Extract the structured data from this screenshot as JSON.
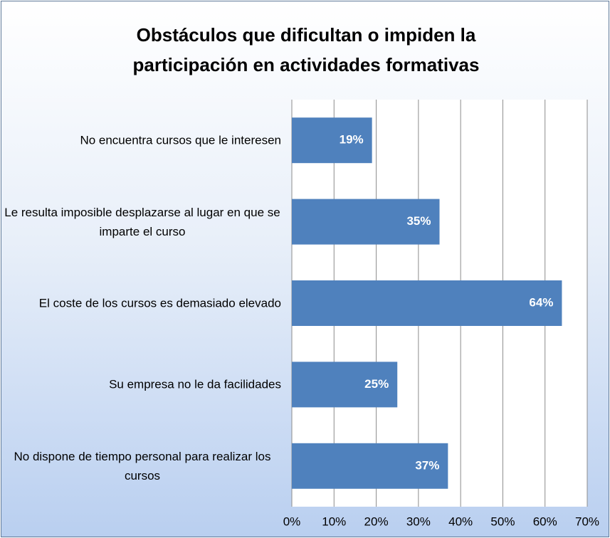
{
  "chart_data": {
    "type": "barh",
    "title": "Obstáculos que dificultan o impiden la participación en actividades formativas",
    "categories": [
      "No encuentra cursos que le interesen",
      "Le resulta imposible desplazarse al lugar en que se imparte el curso",
      "El coste de los cursos es demasiado elevado",
      "Su empresa no le da facilidades",
      "No dispone de tiempo personal para realizar los cursos"
    ],
    "values": [
      19,
      35,
      64,
      25,
      37
    ],
    "value_labels": [
      "19%",
      "35%",
      "64%",
      "25%",
      "37%"
    ],
    "color": "#4f81bd",
    "xlim": [
      0,
      70
    ],
    "xticks": [
      {
        "value": 0,
        "label": "0%"
      },
      {
        "value": 10,
        "label": "10%"
      },
      {
        "value": 20,
        "label": "20%"
      },
      {
        "value": 30,
        "label": "30%"
      },
      {
        "value": 40,
        "label": "40%"
      },
      {
        "value": 50,
        "label": "50%"
      },
      {
        "value": 60,
        "label": "60%"
      },
      {
        "value": 70,
        "label": "70%"
      }
    ],
    "grid": true
  }
}
